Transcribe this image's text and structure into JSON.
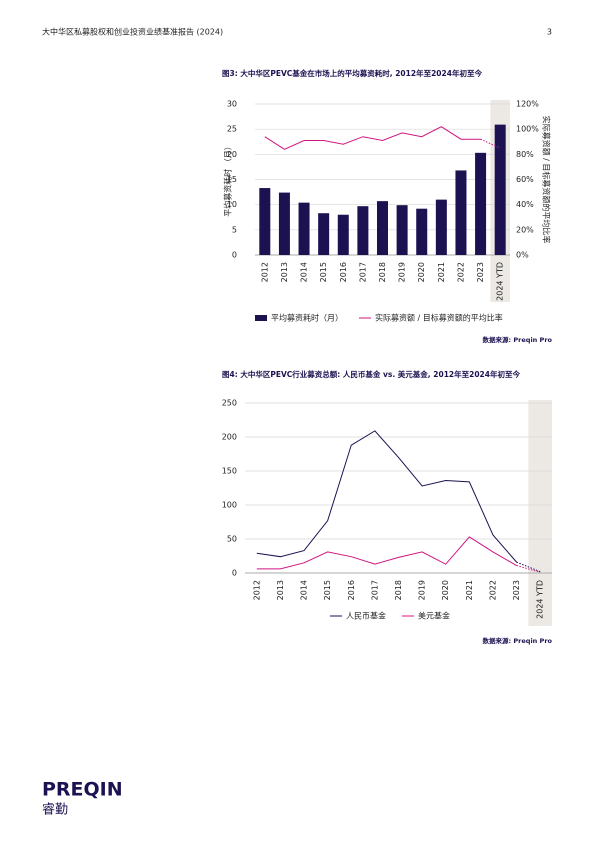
{
  "header": {
    "title": "大中华区私募股权和创业投资业绩基准报告 (2024)",
    "page": "3"
  },
  "chart_data": [
    {
      "type": "bar",
      "title": "图3: 大中华区PEVC基金在市场上的平均募资耗时, 2012年至2024年初至今",
      "y_label": "平均募资耗时 （月）",
      "y2_label": "实际募资额 / 目标募资额的平均比率",
      "categories": [
        "2012",
        "2013",
        "2014",
        "2015",
        "2016",
        "2017",
        "2018",
        "2019",
        "2020",
        "2021",
        "2022",
        "2023",
        "2024 YTD"
      ],
      "series": [
        {
          "name": "平均募资耗时（月）",
          "type": "bar",
          "color": "#1c1251",
          "values": [
            13.3,
            12.4,
            10.4,
            8.3,
            8.0,
            9.7,
            10.7,
            9.9,
            9.2,
            11.0,
            16.8,
            20.3,
            25.9
          ]
        },
        {
          "name": "实际募资额 / 目标募资额的平均比率",
          "type": "line",
          "axis": "y2",
          "color": "#d0157f",
          "dash_last_segment": true,
          "values": [
            94,
            84,
            91,
            91,
            88,
            94,
            91,
            97,
            94,
            102,
            92,
            92,
            85
          ]
        }
      ],
      "ylim": [
        0,
        30
      ],
      "yticks": [
        0,
        5,
        10,
        15,
        20,
        25,
        30
      ],
      "y2lim": [
        0,
        120
      ],
      "y2ticks": [
        {
          "value": 0,
          "label": "0%"
        },
        {
          "value": 20,
          "label": "20%"
        },
        {
          "value": 40,
          "label": "40%"
        },
        {
          "value": 60,
          "label": "60%"
        },
        {
          "value": 80,
          "label": "80%"
        },
        {
          "value": 100,
          "label": "100%"
        },
        {
          "value": 120,
          "label": "120%"
        }
      ],
      "grid": true,
      "source": "数据来源: Preqin Pro"
    },
    {
      "type": "line",
      "title": "图4: 大中华区PEVC行业募资总额: 人民币基金 vs. 美元基金, 2012年至2024年初至今",
      "categories": [
        "2012",
        "2013",
        "2014",
        "2015",
        "2016",
        "2017",
        "2018",
        "2019",
        "2020",
        "2021",
        "2022",
        "2023",
        "2024 YTD"
      ],
      "series": [
        {
          "name": "人民币基金",
          "color": "#1c1251",
          "dash_last_segment": true,
          "values": [
            29,
            24,
            33,
            77,
            188,
            209,
            170,
            128,
            136,
            134,
            56,
            16,
            2
          ]
        },
        {
          "name": "美元基金",
          "color": "#d0157f",
          "dash_last_segment": true,
          "values": [
            6,
            6,
            15,
            31,
            24,
            13,
            23,
            31,
            13,
            53,
            31,
            11,
            1
          ]
        }
      ],
      "ylim": [
        0,
        250
      ],
      "yticks": [
        0,
        50,
        100,
        150,
        200,
        250
      ],
      "grid": true,
      "source": "数据来源: Preqin Pro"
    }
  ],
  "logo": {
    "name": "PREQIN",
    "subtitle": "睿勤"
  }
}
